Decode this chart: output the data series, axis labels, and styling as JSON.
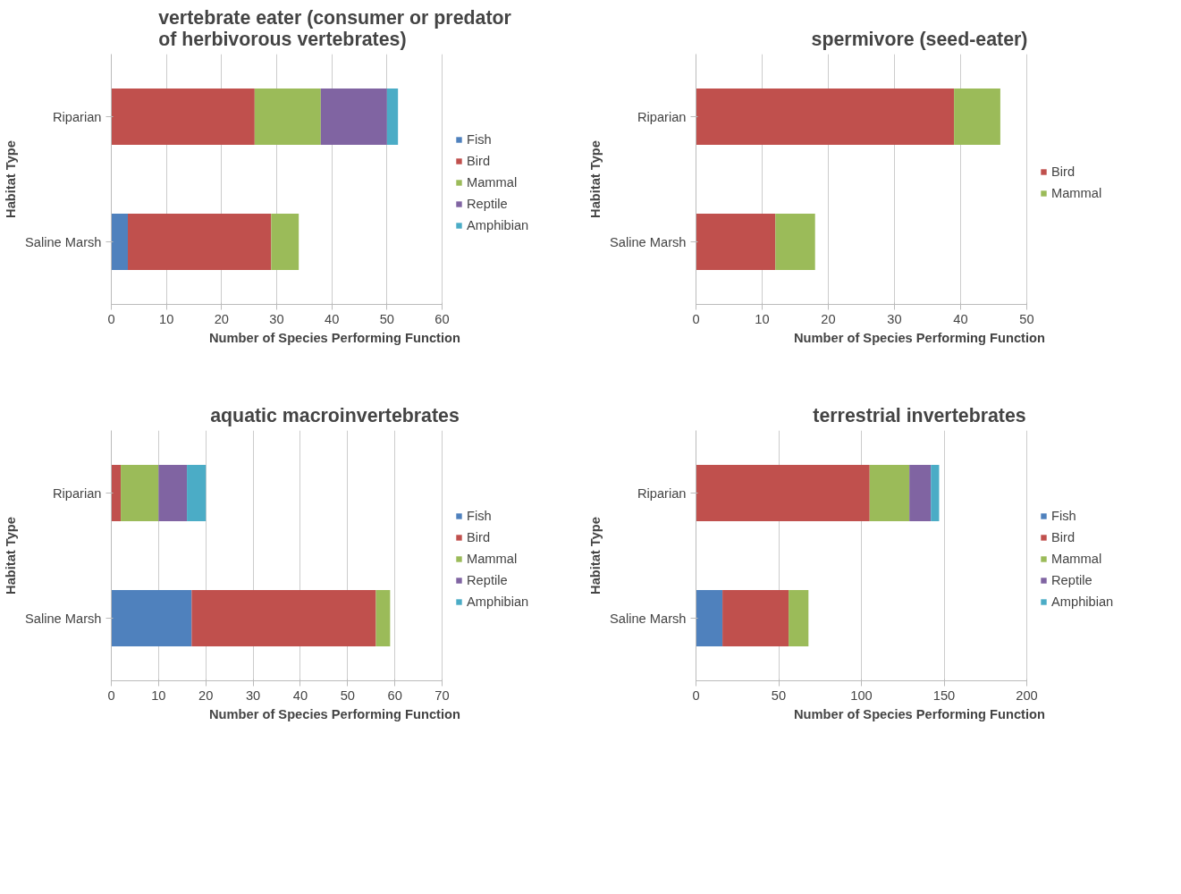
{
  "chart_data": [
    {
      "type": "bar",
      "orientation": "horizontal",
      "stacked": true,
      "title": "vertebrate eater (consumer or predator\nof herbivorous vertebrates)",
      "xlabel": "Number of Species Performing Function",
      "ylabel": "Habitat Type",
      "categories": [
        "Riparian",
        "Saline Marsh"
      ],
      "xlim": [
        0,
        60
      ],
      "xticks": [
        0,
        10,
        20,
        30,
        40,
        50,
        60
      ],
      "grid": "x",
      "legend": "right",
      "series": [
        {
          "name": "Fish",
          "color": "#4f81bd",
          "values": [
            0,
            3
          ]
        },
        {
          "name": "Bird",
          "color": "#c0504d",
          "values": [
            26,
            26
          ]
        },
        {
          "name": "Mammal",
          "color": "#9bbb59",
          "values": [
            12,
            5
          ]
        },
        {
          "name": "Reptile",
          "color": "#8064a2",
          "values": [
            12,
            0
          ]
        },
        {
          "name": "Amphibian",
          "color": "#4bacc6",
          "values": [
            2,
            0
          ]
        }
      ]
    },
    {
      "type": "bar",
      "orientation": "horizontal",
      "stacked": true,
      "title": "spermivore (seed-eater)",
      "xlabel": "Number of Species Performing Function",
      "ylabel": "Habitat Type",
      "categories": [
        "Riparian",
        "Saline Marsh"
      ],
      "xlim": [
        0,
        50
      ],
      "xticks": [
        0,
        10,
        20,
        30,
        40,
        50
      ],
      "grid": "x",
      "legend": "right",
      "series": [
        {
          "name": "Bird",
          "color": "#c0504d",
          "values": [
            39,
            12
          ]
        },
        {
          "name": "Mammal",
          "color": "#9bbb59",
          "values": [
            7,
            6
          ]
        }
      ]
    },
    {
      "type": "bar",
      "orientation": "horizontal",
      "stacked": true,
      "title": "aquatic macroinvertebrates",
      "xlabel": "Number of Species Performing Function",
      "ylabel": "Habitat Type",
      "categories": [
        "Riparian",
        "Saline Marsh"
      ],
      "xlim": [
        0,
        70
      ],
      "xticks": [
        0,
        10,
        20,
        30,
        40,
        50,
        60,
        70
      ],
      "grid": "x",
      "legend": "right",
      "series": [
        {
          "name": "Fish",
          "color": "#4f81bd",
          "values": [
            0,
            17
          ]
        },
        {
          "name": "Bird",
          "color": "#c0504d",
          "values": [
            2,
            39
          ]
        },
        {
          "name": "Mammal",
          "color": "#9bbb59",
          "values": [
            8,
            3
          ]
        },
        {
          "name": "Reptile",
          "color": "#8064a2",
          "values": [
            6,
            0
          ]
        },
        {
          "name": "Amphibian",
          "color": "#4bacc6",
          "values": [
            4,
            0
          ]
        }
      ]
    },
    {
      "type": "bar",
      "orientation": "horizontal",
      "stacked": true,
      "title": "terrestrial invertebrates",
      "xlabel": "Number of Species Performing Function",
      "ylabel": "Habitat Type",
      "categories": [
        "Riparian",
        "Saline Marsh"
      ],
      "xlim": [
        0,
        200
      ],
      "xticks": [
        0,
        50,
        100,
        150,
        200
      ],
      "grid": "x",
      "legend": "right",
      "series": [
        {
          "name": "Fish",
          "color": "#4f81bd",
          "values": [
            0,
            16
          ]
        },
        {
          "name": "Bird",
          "color": "#c0504d",
          "values": [
            105,
            40
          ]
        },
        {
          "name": "Mammal",
          "color": "#9bbb59",
          "values": [
            24,
            12
          ]
        },
        {
          "name": "Reptile",
          "color": "#8064a2",
          "values": [
            13,
            0
          ]
        },
        {
          "name": "Amphibian",
          "color": "#4bacc6",
          "values": [
            5,
            0
          ]
        }
      ]
    }
  ]
}
